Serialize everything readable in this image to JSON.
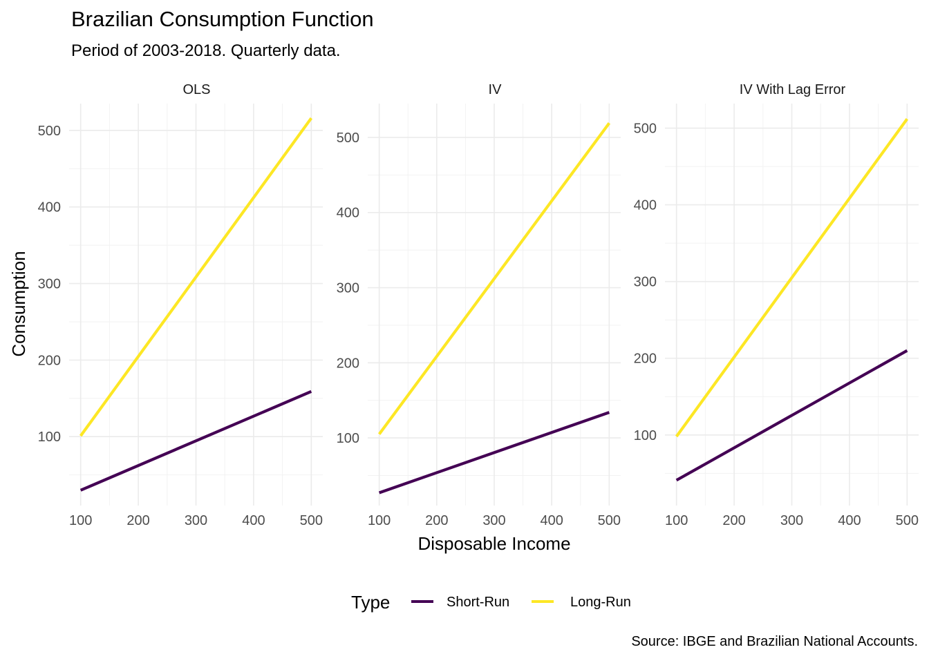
{
  "chart_data": {
    "type": "line",
    "title": "Brazilian Consumption Function",
    "subtitle": "Period of 2003-2018. Quarterly data.",
    "xlabel": "Disposable Income",
    "ylabel": "Consumption",
    "caption": "Source: IBGE and Brazilian National Accounts.",
    "legend": {
      "title": "Type",
      "position": "bottom"
    },
    "grid": true,
    "colors": {
      "Short-Run": "#440154",
      "Long-Run": "#FDE725"
    },
    "x_ticks": [
      "100",
      "200",
      "300",
      "400",
      "500"
    ],
    "y_ticks": [
      "100",
      "200",
      "300",
      "400",
      "500"
    ],
    "panels": [
      {
        "label": "OLS",
        "xlim": [
          80,
          520
        ],
        "ylim": [
          10,
          535
        ],
        "series": [
          {
            "name": "Short-Run",
            "x": [
              100,
              500
            ],
            "y": [
              30,
              159
            ]
          },
          {
            "name": "Long-Run",
            "x": [
              100,
              500
            ],
            "y": [
              101,
              516
            ]
          }
        ]
      },
      {
        "label": "IV",
        "xlim": [
          80,
          520
        ],
        "ylim": [
          10,
          545
        ],
        "series": [
          {
            "name": "Short-Run",
            "x": [
              100,
              500
            ],
            "y": [
              27,
              134
            ]
          },
          {
            "name": "Long-Run",
            "x": [
              100,
              500
            ],
            "y": [
              105,
              519
            ]
          }
        ]
      },
      {
        "label": "IV With Lag Error",
        "xlim": [
          80,
          520
        ],
        "ylim": [
          8,
          532
        ],
        "series": [
          {
            "name": "Short-Run",
            "x": [
              100,
              500
            ],
            "y": [
              41,
              210
            ]
          },
          {
            "name": "Long-Run",
            "x": [
              100,
              500
            ],
            "y": [
              98,
              512
            ]
          }
        ]
      }
    ]
  }
}
